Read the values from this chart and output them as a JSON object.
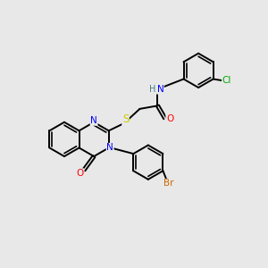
{
  "bg_color": "#e8e8e8",
  "atom_colors": {
    "C": "#000000",
    "N": "#0000ff",
    "O": "#ff0000",
    "S": "#cccc00",
    "Br": "#cc6600",
    "Cl": "#00aa00",
    "H": "#408080"
  },
  "bond_color": "#000000",
  "lw": 1.4,
  "lw_inner": 1.2,
  "ring_r": 0.65,
  "font_size": 7.5
}
